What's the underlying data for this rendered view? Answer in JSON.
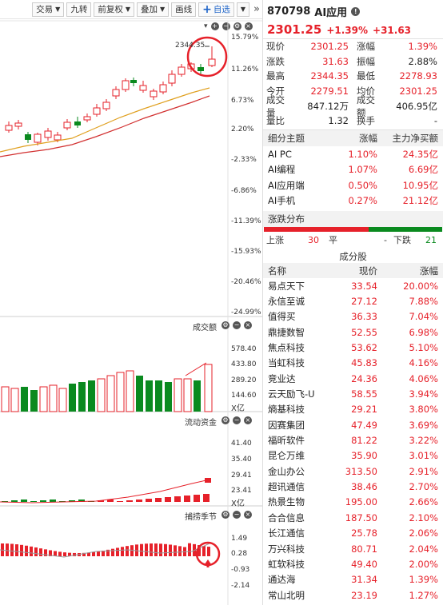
{
  "toolbar": {
    "trade": "交易",
    "nine_turns": "九转",
    "adjust": "前复权",
    "overlay": "叠加",
    "draw": "画线",
    "add_watch": "自选",
    "expand": "»"
  },
  "main_chart": {
    "high_label": "2344.35",
    "y_ticks": [
      "15.79%",
      "11.26%",
      "6.73%",
      "2.20%",
      "-2.33%",
      "-6.86%",
      "-11.39%",
      "-15.93%",
      "-20.46%",
      "-24.99%"
    ]
  },
  "volume_pane": {
    "title": "成交额",
    "y_ticks": [
      "578.40",
      "433.80",
      "289.20",
      "144.60"
    ],
    "unit": "X亿"
  },
  "flow_pane": {
    "title": "流动资金",
    "y_ticks": [
      "41.40",
      "35.40",
      "29.41",
      "23.41"
    ],
    "unit": "X亿"
  },
  "season_pane": {
    "title": "捕捞季节",
    "y_ticks": [
      "1.49",
      "0.28",
      "-0.93",
      "-2.14"
    ]
  },
  "quote": {
    "code": "870798",
    "name": "AI应用",
    "price": "2301.25",
    "change_pct": "+1.39%",
    "change": "+31.63",
    "rows": [
      {
        "k1": "现价",
        "v1": "2301.25",
        "c1": "red",
        "k2": "涨幅",
        "v2": "1.39%",
        "c2": "red"
      },
      {
        "k1": "涨跌",
        "v1": "31.63",
        "c1": "red",
        "k2": "振幅",
        "v2": "2.88%",
        "c2": "dark"
      },
      {
        "k1": "最高",
        "v1": "2344.35",
        "c1": "red",
        "k2": "最低",
        "v2": "2278.93",
        "c2": "red"
      },
      {
        "k1": "今开",
        "v1": "2279.51",
        "c1": "red",
        "k2": "均价",
        "v2": "2301.25",
        "c2": "red"
      },
      {
        "k1": "成交量",
        "v1": "847.12万",
        "c1": "dark",
        "k2": "成交额",
        "v2": "406.95亿",
        "c2": "dark"
      },
      {
        "k1": "量比",
        "v1": "1.32",
        "c1": "dark",
        "k2": "换手",
        "v2": "-",
        "c2": "dark"
      }
    ]
  },
  "themes": {
    "headers": [
      "细分主题",
      "涨幅",
      "主力净买额"
    ],
    "rows": [
      {
        "name": "AI PC",
        "pct": "1.10%",
        "net": "24.35亿"
      },
      {
        "name": "AI编程",
        "pct": "1.07%",
        "net": "6.69亿"
      },
      {
        "name": "AI应用端",
        "pct": "0.50%",
        "net": "10.95亿"
      },
      {
        "name": "AI手机",
        "pct": "0.27%",
        "net": "21.12亿"
      }
    ]
  },
  "distribution": {
    "title": "涨跌分布",
    "up_label": "上涨",
    "up": "30",
    "flat_label": "平",
    "flat": "-",
    "down_label": "下跌",
    "down": "21",
    "up_color": "#e6212a",
    "down_color": "#0a8a1f"
  },
  "constituents": {
    "title": "成分股",
    "headers": [
      "名称",
      "现价",
      "涨幅"
    ],
    "rows": [
      {
        "name": "易点天下",
        "price": "33.54",
        "pct": "20.00%"
      },
      {
        "name": "永信至诚",
        "price": "27.12",
        "pct": "7.88%"
      },
      {
        "name": "值得买",
        "price": "36.33",
        "pct": "7.04%"
      },
      {
        "name": "鼎捷数智",
        "price": "52.55",
        "pct": "6.98%"
      },
      {
        "name": "焦点科技",
        "price": "53.62",
        "pct": "5.10%"
      },
      {
        "name": "当虹科技",
        "price": "45.83",
        "pct": "4.16%"
      },
      {
        "name": "竞业达",
        "price": "24.36",
        "pct": "4.06%"
      },
      {
        "name": "云天励飞-U",
        "price": "58.55",
        "pct": "3.94%"
      },
      {
        "name": "熵基科技",
        "price": "29.21",
        "pct": "3.80%"
      },
      {
        "name": "因赛集团",
        "price": "47.49",
        "pct": "3.69%"
      },
      {
        "name": "福昕软件",
        "price": "81.22",
        "pct": "3.22%"
      },
      {
        "name": "昆仑万维",
        "price": "35.90",
        "pct": "3.01%"
      },
      {
        "name": "金山办公",
        "price": "313.50",
        "pct": "2.91%"
      },
      {
        "name": "超讯通信",
        "price": "38.46",
        "pct": "2.70%"
      },
      {
        "name": "热景生物",
        "price": "195.00",
        "pct": "2.66%"
      },
      {
        "name": "合合信息",
        "price": "187.50",
        "pct": "2.10%"
      },
      {
        "name": "长江通信",
        "price": "25.78",
        "pct": "2.06%"
      },
      {
        "name": "万兴科技",
        "price": "80.71",
        "pct": "2.04%"
      },
      {
        "name": "虹软科技",
        "price": "49.40",
        "pct": "2.00%"
      },
      {
        "name": "通达海",
        "price": "31.34",
        "pct": "1.39%"
      },
      {
        "name": "常山北明",
        "price": "23.19",
        "pct": "1.27%"
      }
    ]
  }
}
